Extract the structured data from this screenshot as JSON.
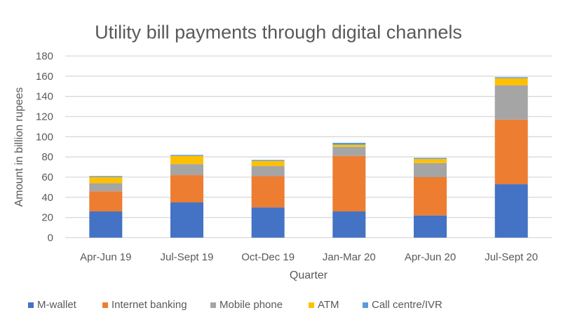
{
  "chart_data": {
    "type": "bar",
    "stacked": true,
    "title": "Utility bill payments through digital channels",
    "xlabel": "Quarter",
    "ylabel": "Amount in billion rupees",
    "ylim": [
      0,
      180
    ],
    "yticks": [
      0,
      20,
      40,
      60,
      80,
      100,
      120,
      140,
      160,
      180
    ],
    "grid": true,
    "legend_position": "bottom",
    "categories": [
      "Apr-Jun 19",
      "Jul-Sept 19",
      "Oct-Dec 19",
      "Jan-Mar 20",
      "Apr-Jun 20",
      "Jul-Sept 20"
    ],
    "series": [
      {
        "name": "M-wallet",
        "color": "#4472c4",
        "values": [
          26,
          35,
          30,
          26,
          22,
          53
        ]
      },
      {
        "name": "Internet banking",
        "color": "#ed7d31",
        "values": [
          20,
          27,
          31,
          55,
          38,
          64
        ]
      },
      {
        "name": "Mobile phone",
        "color": "#a5a5a5",
        "values": [
          8,
          11,
          10,
          9,
          14,
          34
        ]
      },
      {
        "name": "ATM",
        "color": "#ffc000",
        "values": [
          6,
          8,
          5,
          2,
          4,
          7
        ]
      },
      {
        "name": "Call centre/IVR",
        "color": "#5b9bd5",
        "values": [
          1,
          1,
          1,
          2,
          1,
          1
        ]
      }
    ]
  }
}
